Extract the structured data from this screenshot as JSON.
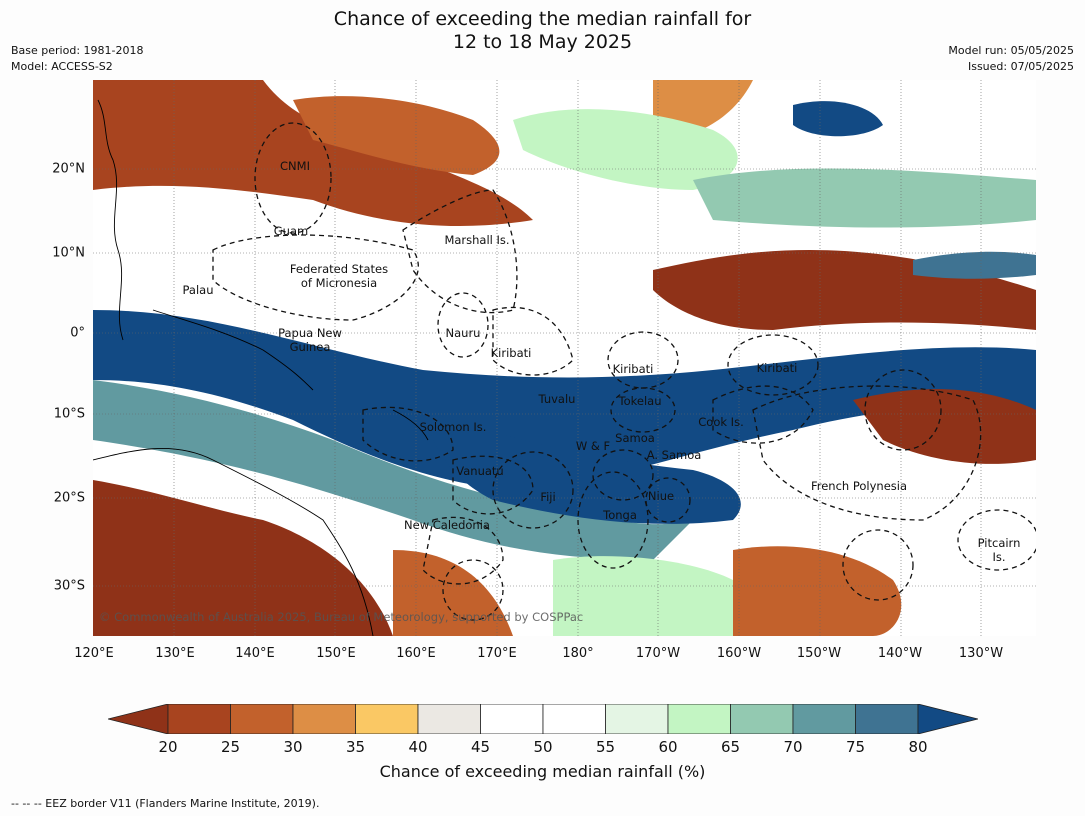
{
  "title_line1": "Chance of exceeding the median rainfall for",
  "title_line2": "12 to 18 May 2025",
  "base_period": "Base period: 1981-2018",
  "model": "Model: ACCESS-S2",
  "model_run": "Model run: 05/05/2025",
  "issued": "Issued: 07/05/2025",
  "copyright": "© Commonwealth of Australia 2025, Bureau of Meteorology, supported by COSPPac",
  "footer": "--  --  -- EEZ border V11 (Flanders Marine Institute, 2019).",
  "lon_labels": [
    "120°E",
    "130°E",
    "140°E",
    "150°E",
    "160°E",
    "170°E",
    "180°",
    "170°W",
    "160°W",
    "150°W",
    "140°W",
    "130°W"
  ],
  "lat_labels": [
    "20°N",
    "10°N",
    "0°",
    "10°S",
    "20°S",
    "30°S"
  ],
  "colorbar": {
    "title": "Chance of exceeding median rainfall (%)",
    "ticks": [
      "20",
      "25",
      "30",
      "35",
      "40",
      "45",
      "50",
      "55",
      "60",
      "65",
      "70",
      "75",
      "80"
    ],
    "colors": [
      "#8f3218",
      "#a8441f",
      "#c2612c",
      "#dd8e45",
      "#fac864",
      "#ebe8e3",
      "#ffffff",
      "#ffffff",
      "#e4f5e4",
      "#c3f5c3",
      "#93c9b1",
      "#619aa0",
      "#3f7392",
      "#124a84"
    ]
  },
  "regions": [
    "CNMI",
    "Guam",
    "Marshall Is.",
    "Federated States",
    "of Micronesia",
    "Palau",
    "Papua New",
    "Guinea",
    "Nauru",
    "Kiribati",
    "Kiribati",
    "Kiribati",
    "Tuvalu",
    "Tokelau",
    "Cook Is.",
    "Solomon Is.",
    "W & F",
    "Samoa",
    "A. Samoa",
    "Vanuatu",
    "Fiji",
    "Niue",
    "French Polynesia",
    "Tonga",
    "New Caledonia",
    "Pitcairn",
    "Is."
  ]
}
